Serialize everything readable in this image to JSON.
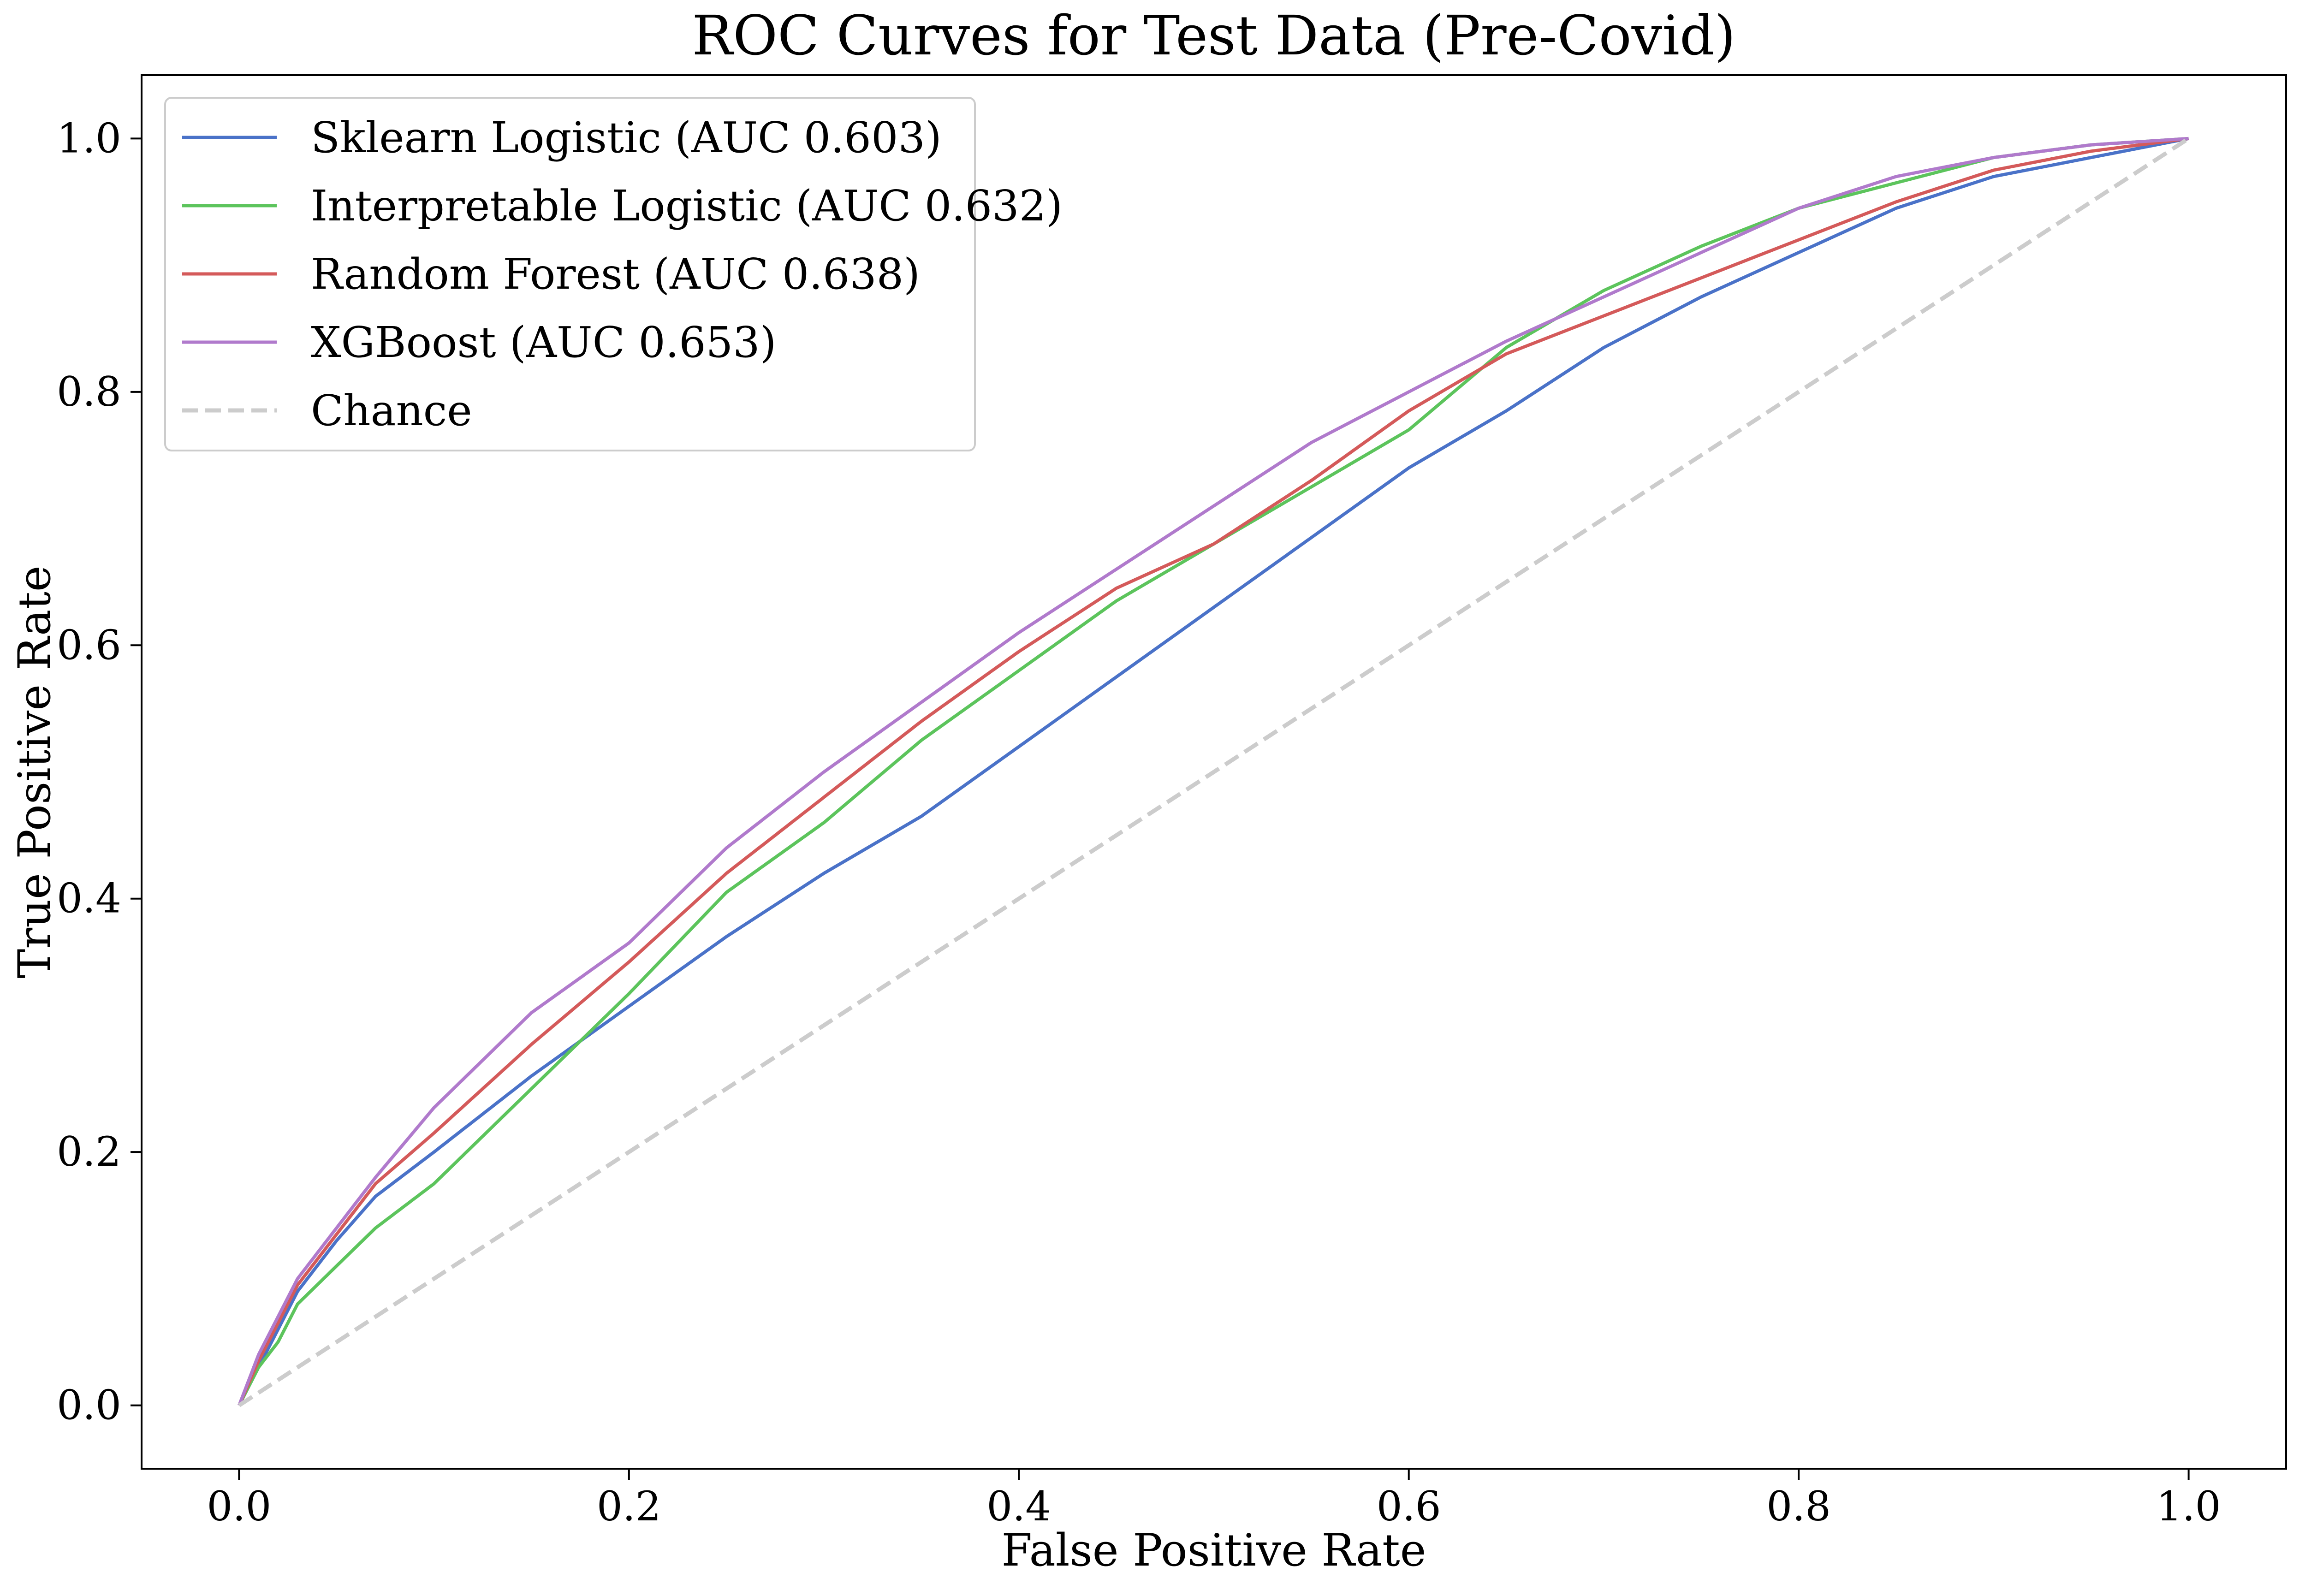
{
  "chart_data": {
    "type": "line",
    "title": "ROC Curves for Test Data (Pre-Covid)",
    "xlabel": "False Positive Rate",
    "ylabel": "True Positive Rate",
    "xlim": [
      -0.05,
      1.05
    ],
    "ylim": [
      -0.05,
      1.05
    ],
    "xticks": [
      0.0,
      0.2,
      0.4,
      0.6,
      0.8,
      1.0
    ],
    "xtick_labels": [
      "0.0",
      "0.2",
      "0.4",
      "0.6",
      "0.8",
      "1.0"
    ],
    "yticks": [
      0.0,
      0.2,
      0.4,
      0.6,
      0.8,
      1.0
    ],
    "ytick_labels": [
      "0.0",
      "0.2",
      "0.4",
      "0.6",
      "0.8",
      "1.0"
    ],
    "grid": false,
    "legend_position": "upper-left",
    "series": [
      {
        "name": "Sklearn Logistic (AUC 0.603)",
        "color": "#4a72c8",
        "dashed": false,
        "x": [
          0.0,
          0.01,
          0.02,
          0.03,
          0.05,
          0.07,
          0.1,
          0.15,
          0.2,
          0.25,
          0.3,
          0.35,
          0.4,
          0.45,
          0.5,
          0.55,
          0.6,
          0.65,
          0.7,
          0.75,
          0.8,
          0.85,
          0.9,
          0.95,
          1.0
        ],
        "y": [
          0.0,
          0.03,
          0.06,
          0.09,
          0.13,
          0.165,
          0.2,
          0.26,
          0.315,
          0.37,
          0.42,
          0.465,
          0.52,
          0.575,
          0.63,
          0.685,
          0.74,
          0.785,
          0.835,
          0.875,
          0.91,
          0.945,
          0.97,
          0.985,
          1.0
        ]
      },
      {
        "name": "Interpretable Logistic (AUC 0.632)",
        "color": "#5cc45c",
        "dashed": false,
        "x": [
          0.0,
          0.01,
          0.02,
          0.03,
          0.05,
          0.07,
          0.1,
          0.15,
          0.2,
          0.25,
          0.3,
          0.35,
          0.4,
          0.45,
          0.5,
          0.55,
          0.6,
          0.65,
          0.7,
          0.75,
          0.8,
          0.85,
          0.9,
          0.95,
          1.0
        ],
        "y": [
          0.0,
          0.03,
          0.05,
          0.08,
          0.11,
          0.14,
          0.175,
          0.25,
          0.325,
          0.405,
          0.46,
          0.525,
          0.58,
          0.635,
          0.68,
          0.725,
          0.77,
          0.835,
          0.88,
          0.915,
          0.945,
          0.965,
          0.985,
          0.995,
          1.0
        ]
      },
      {
        "name": "Random Forest (AUC 0.638)",
        "color": "#d45a5a",
        "dashed": false,
        "x": [
          0.0,
          0.01,
          0.02,
          0.03,
          0.05,
          0.07,
          0.1,
          0.15,
          0.2,
          0.25,
          0.3,
          0.35,
          0.4,
          0.45,
          0.5,
          0.55,
          0.6,
          0.65,
          0.7,
          0.75,
          0.8,
          0.85,
          0.9,
          0.95,
          1.0
        ],
        "y": [
          0.0,
          0.035,
          0.065,
          0.095,
          0.135,
          0.175,
          0.215,
          0.285,
          0.35,
          0.42,
          0.48,
          0.54,
          0.595,
          0.645,
          0.68,
          0.73,
          0.785,
          0.83,
          0.86,
          0.89,
          0.92,
          0.95,
          0.975,
          0.99,
          1.0
        ]
      },
      {
        "name": "XGBoost (AUC 0.653)",
        "color": "#b07acc",
        "dashed": false,
        "x": [
          0.0,
          0.01,
          0.02,
          0.03,
          0.05,
          0.07,
          0.1,
          0.15,
          0.2,
          0.25,
          0.3,
          0.35,
          0.4,
          0.45,
          0.5,
          0.55,
          0.6,
          0.65,
          0.7,
          0.75,
          0.8,
          0.85,
          0.9,
          0.95,
          1.0
        ],
        "y": [
          0.0,
          0.04,
          0.07,
          0.1,
          0.14,
          0.18,
          0.235,
          0.31,
          0.365,
          0.44,
          0.5,
          0.555,
          0.61,
          0.66,
          0.71,
          0.76,
          0.8,
          0.84,
          0.875,
          0.91,
          0.945,
          0.97,
          0.985,
          0.995,
          1.0
        ]
      },
      {
        "name": "Chance",
        "color": "#cccccc",
        "dashed": true,
        "x": [
          0.0,
          1.0
        ],
        "y": [
          0.0,
          1.0
        ]
      }
    ]
  }
}
